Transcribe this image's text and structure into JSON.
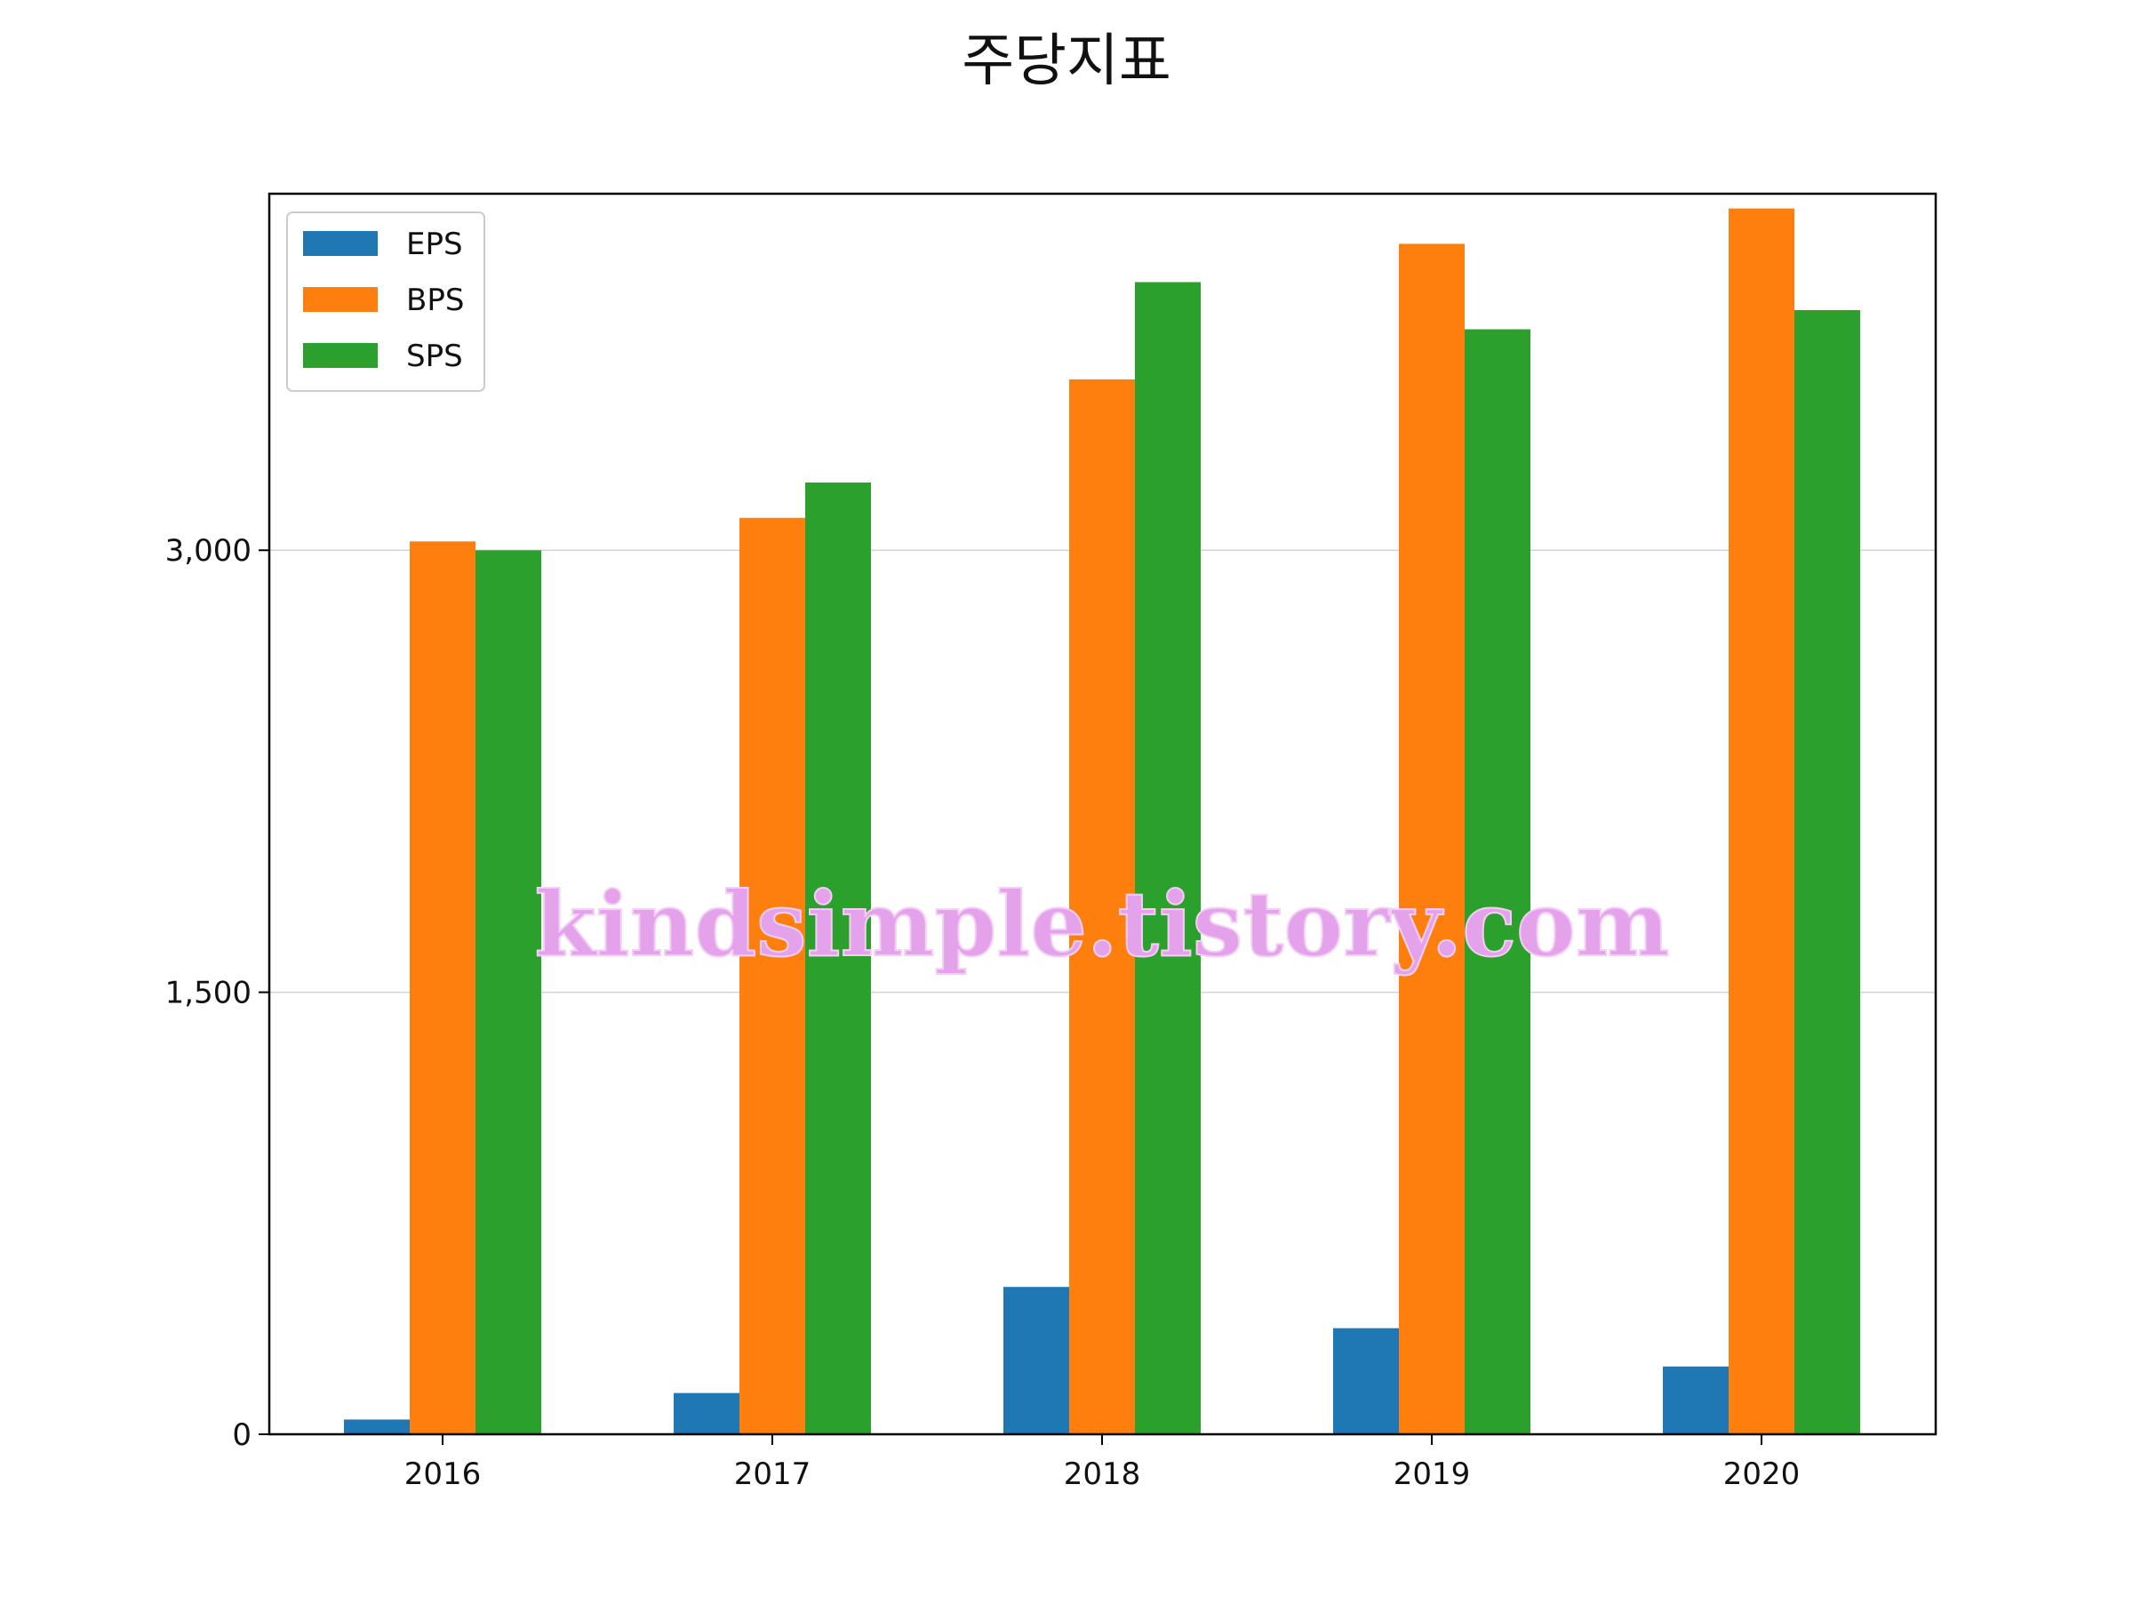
{
  "chart_data": {
    "type": "bar",
    "title": "주당지표",
    "xlabel": "",
    "ylabel": "",
    "categories": [
      "2016",
      "2017",
      "2018",
      "2019",
      "2020"
    ],
    "series": [
      {
        "name": "EPS",
        "color": "#1f77b4",
        "values": [
          50,
          140,
          500,
          360,
          230
        ]
      },
      {
        "name": "BPS",
        "color": "#ff7f0e",
        "values": [
          3030,
          3110,
          3580,
          4040,
          4160
        ]
      },
      {
        "name": "SPS",
        "color": "#2ca02c",
        "values": [
          3000,
          3230,
          3910,
          3750,
          3815
        ]
      }
    ],
    "ylim": [
      0,
      4210
    ],
    "yticks": [
      0,
      1500,
      3000
    ],
    "ytick_labels": [
      "0",
      "1,500",
      "3,000"
    ],
    "grid": "horizontal",
    "legend_position": "upper-left"
  },
  "watermark": "kindsimple.tistory.com"
}
